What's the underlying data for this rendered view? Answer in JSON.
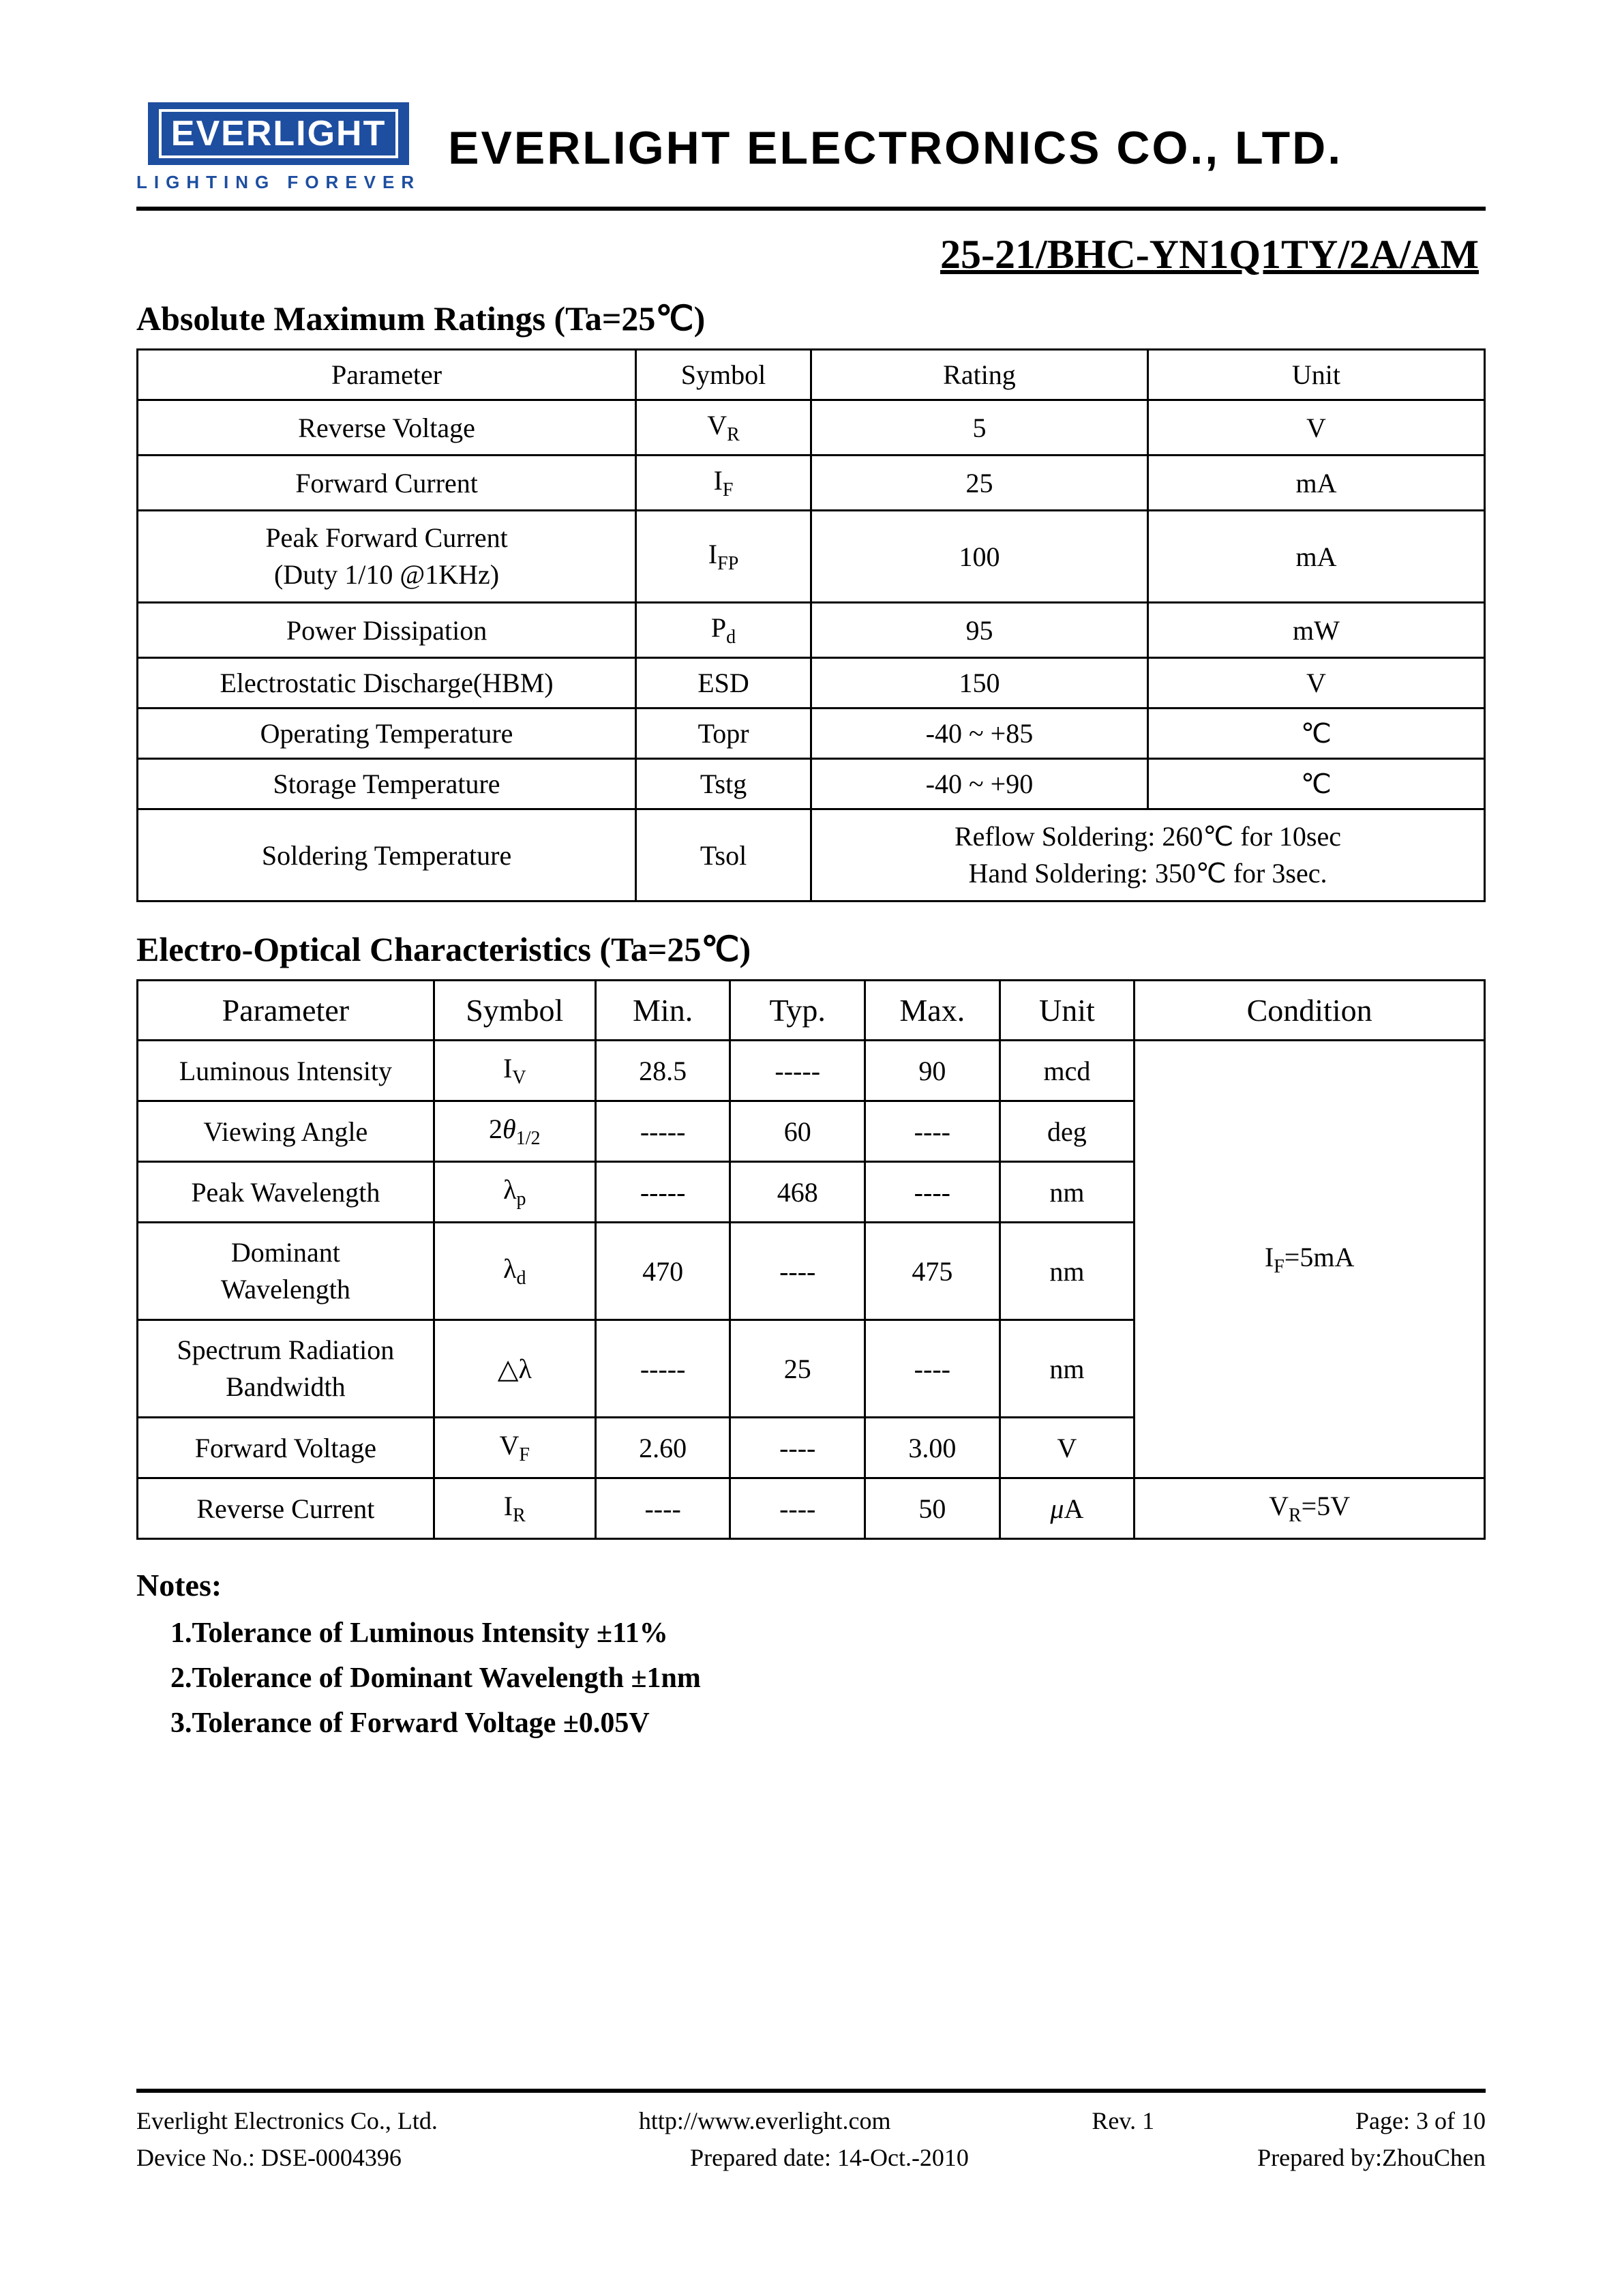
{
  "header": {
    "logo_text": "EVERLIGHT",
    "logo_tagline": "LIGHTING  FOREVER",
    "company_title": "EVERLIGHT ELECTRONICS CO., LTD."
  },
  "part_number": "25-21/BHC-YN1Q1TY/2A/AM",
  "section1": {
    "title": "Absolute Maximum Ratings (Ta=25℃)",
    "columns": [
      "Parameter",
      "Symbol",
      "Rating",
      "Unit"
    ],
    "rows": [
      {
        "param": "Reverse Voltage",
        "sym": "V",
        "sub": "R",
        "rating": "5",
        "unit": "V"
      },
      {
        "param": "Forward Current",
        "sym": "I",
        "sub": "F",
        "rating": "25",
        "unit": "mA"
      },
      {
        "param": "Peak Forward Current",
        "param2": "(Duty 1/10 @1KHz)",
        "sym": "I",
        "sub": "FP",
        "rating": "100",
        "unit": "mA"
      },
      {
        "param": "Power Dissipation",
        "sym": "P",
        "sub": "d",
        "rating": "95",
        "unit": "mW"
      },
      {
        "param": "Electrostatic Discharge(HBM)",
        "sym": "ESD",
        "sub": "",
        "rating": "150",
        "unit": "V"
      },
      {
        "param": "Operating Temperature",
        "sym": "Topr",
        "sub": "",
        "rating": "-40 ~ +85",
        "unit": "℃"
      },
      {
        "param": "Storage Temperature",
        "sym": "Tstg",
        "sub": "",
        "rating": "-40 ~ +90",
        "unit": "℃"
      }
    ],
    "solder_row": {
      "param": "Soldering Temperature",
      "sym": "Tsol",
      "line1": "Reflow Soldering: 260℃ for 10sec",
      "line2": "Hand Soldering: 350℃ for 3sec."
    }
  },
  "section2": {
    "title": "Electro-Optical Characteristics (Ta=25℃)",
    "columns": [
      "Parameter",
      "Symbol",
      "Min.",
      "Typ.",
      "Max.",
      "Unit",
      "Condition"
    ],
    "rows": [
      {
        "param": "Luminous Intensity",
        "sym_html": "I<span class='sub'>V</span>",
        "min": "28.5",
        "typ": "-----",
        "max": "90",
        "unit": "mcd"
      },
      {
        "param": "Viewing Angle",
        "sym_html": "2<span class='ital'>θ</span><span class='sub'>1/2</span>",
        "min": "-----",
        "typ": "60",
        "max": "----",
        "unit": "deg"
      },
      {
        "param": "Peak Wavelength",
        "sym_html": "λ<span class='sub'>p</span>",
        "min": "-----",
        "typ": "468",
        "max": "----",
        "unit": "nm"
      },
      {
        "param": "Dominant",
        "param2": "Wavelength",
        "sym_html": "λ<span class='sub'>d</span>",
        "min": "470",
        "typ": "----",
        "max": "475",
        "unit": "nm"
      },
      {
        "param": "Spectrum Radiation",
        "param2": "Bandwidth",
        "sym_html": "△λ",
        "min": "-----",
        "typ": "25",
        "max": "----",
        "unit": "nm"
      },
      {
        "param": "Forward Voltage",
        "sym_html": "V<span class='sub'>F</span>",
        "min": "2.60",
        "typ": "----",
        "max": "3.00",
        "unit": "V"
      }
    ],
    "cond1_html": "I<span class='sub'>F</span>=5mA",
    "last_row": {
      "param": "Reverse Current",
      "sym_html": "I<span class='sub'>R</span>",
      "min": "----",
      "typ": "----",
      "max": "50",
      "unit": "<span class='ital'>μ</span>A",
      "cond_html": "V<span class='sub'>R</span>=5V"
    }
  },
  "notes": {
    "title": "Notes:",
    "items": [
      "1.Tolerance of Luminous Intensity ±11%",
      "2.Tolerance of Dominant Wavelength ±1nm",
      "3.Tolerance of Forward Voltage ±0.05V"
    ]
  },
  "footer": {
    "company": "Everlight Electronics Co., Ltd.",
    "url": "http://www.everlight.com",
    "rev": "Rev. 1",
    "page": "Page: 3 of 10",
    "device": "Device No.: DSE-0004396",
    "prepared_date": "Prepared date: 14-Oct.-2010",
    "prepared_by": "Prepared by:ZhouChen"
  },
  "style": {
    "col_widths_t1": [
      "37%",
      "13%",
      "25%",
      "25%"
    ],
    "col_widths_t2": [
      "22%",
      "12%",
      "10%",
      "10%",
      "10%",
      "10%",
      "26%"
    ]
  }
}
